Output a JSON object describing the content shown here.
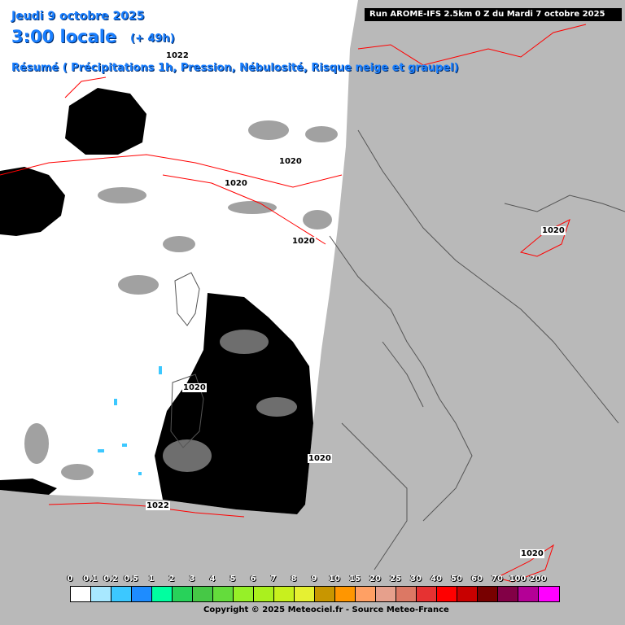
{
  "header": {
    "date": "Jeudi 9 octobre 2025",
    "time": "3:00 locale",
    "offset": "(+ 49h)",
    "summary": "Résumé ( Précipitations 1h, Pression, Nébulosité, Risque neige et graupel)"
  },
  "run": "Run AROME-IFS 2.5km 0 Z du Mardi 7 octobre 2025",
  "isobars": [
    "1022",
    "1020",
    "1020",
    "1020",
    "1020",
    "1020",
    "1022",
    "1020",
    "1020"
  ],
  "legend": {
    "values": [
      "0",
      "0.1",
      "0.2",
      "0.5",
      "1",
      "2",
      "3",
      "4",
      "5",
      "6",
      "7",
      "8",
      "9",
      "10",
      "15",
      "20",
      "25",
      "30",
      "40",
      "50",
      "60",
      "70",
      "100",
      "200"
    ],
    "colors": [
      "#ffffff",
      "#a8e8ff",
      "#3cc8ff",
      "#1e8cff",
      "#00ffa0",
      "#28d25a",
      "#46c846",
      "#64dc3c",
      "#96f028",
      "#aaf01e",
      "#c8f01e",
      "#e6f032",
      "#c89600",
      "#ff9600",
      "#ffa064",
      "#e6a08c",
      "#dc7864",
      "#e63232",
      "#ff0000",
      "#c80000",
      "#780000",
      "#820046",
      "#b40096",
      "#ff00ff"
    ]
  },
  "copyright": "Copyright © 2025 Meteociel.fr - Source Meteo-France",
  "colors": {
    "land": "#b9b9b9",
    "cloud": "#ffffff",
    "clear_sky": "#000000",
    "isobar": "#ff0000",
    "title": "#1a7fff"
  }
}
